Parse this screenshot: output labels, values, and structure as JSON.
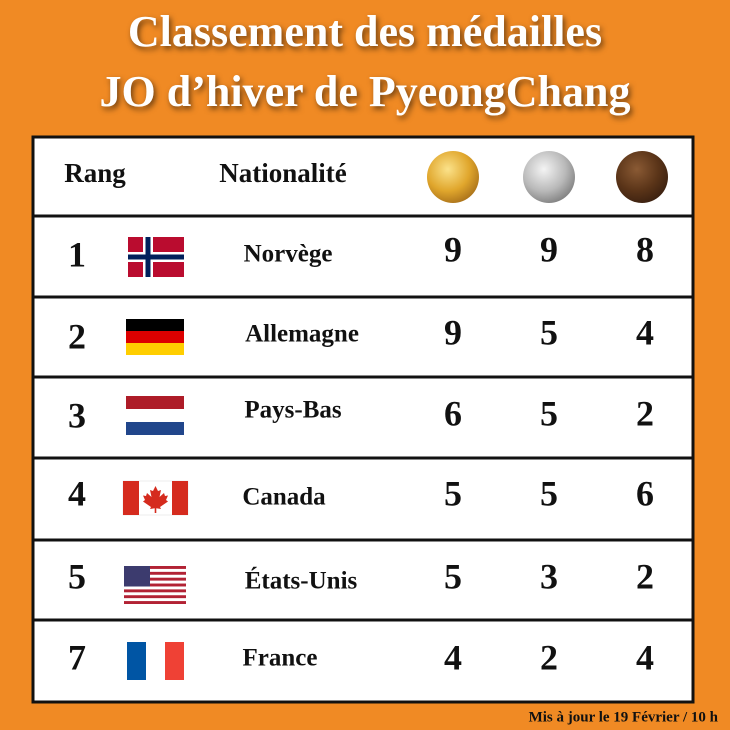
{
  "header": {
    "title_line1": "Classement des médailles",
    "title_line2": "JO d’hiver de PyeongChang"
  },
  "table": {
    "columns": [
      "Rang",
      "Nationalité"
    ],
    "rows": [
      {
        "rank": 1,
        "country": "Norvège",
        "gold": 9,
        "silver": 9,
        "bronze": 8
      },
      {
        "rank": 2,
        "country": "Allemagne",
        "gold": 9,
        "silver": 5,
        "bronze": 4
      },
      {
        "rank": 3,
        "country": "Pays-Bas",
        "gold": 6,
        "silver": 5,
        "bronze": 2
      },
      {
        "rank": 4,
        "country": "Canada",
        "gold": 5,
        "silver": 5,
        "bronze": 6
      },
      {
        "rank": 5,
        "country": "États-Unis",
        "gold": 5,
        "silver": 3,
        "bronze": 2
      },
      {
        "rank": 7,
        "country": "France",
        "gold": 4,
        "silver": 2,
        "bronze": 4
      }
    ]
  },
  "footer": {
    "note": "Mis à jour le 19 Février / 10 h"
  }
}
